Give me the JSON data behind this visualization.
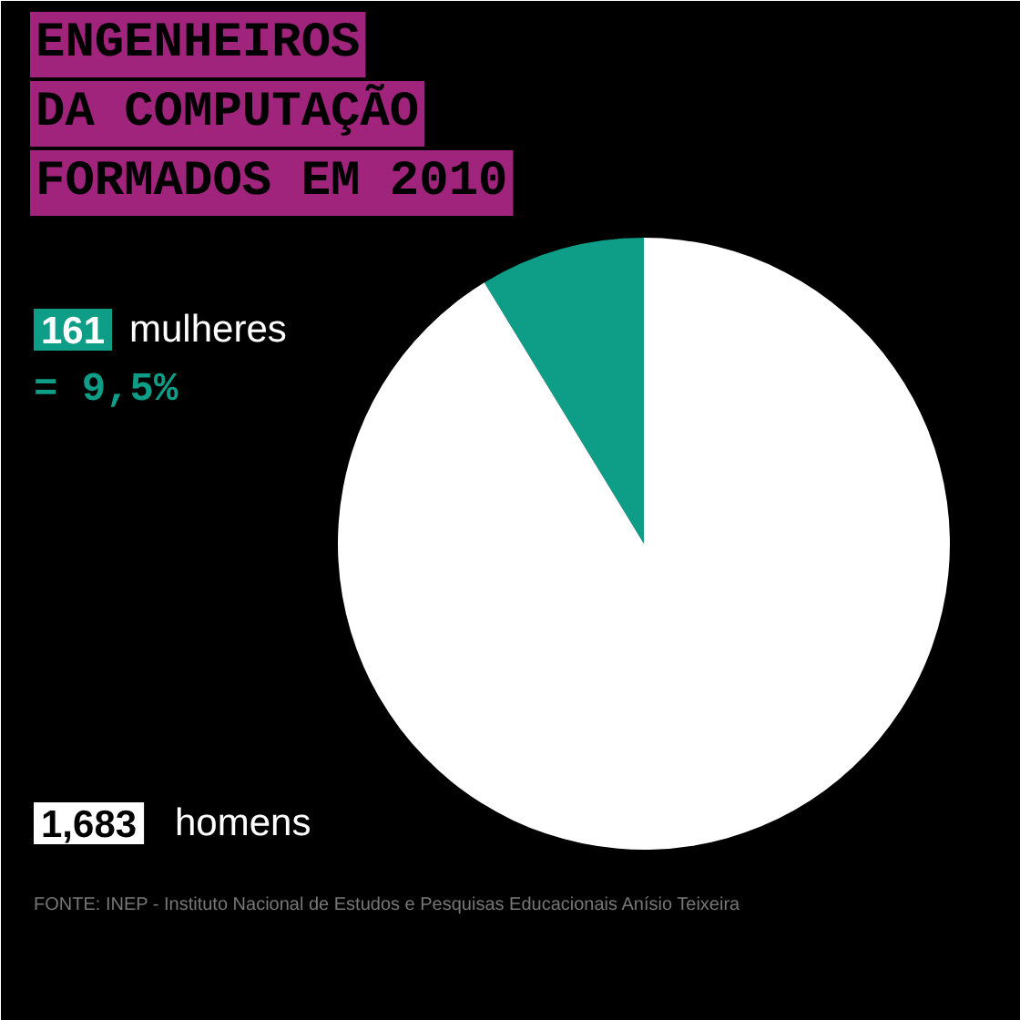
{
  "chart_data": {
    "type": "pie",
    "title": "ENGENHEIROS\nDA COMPUTAÇÃO\nFORMADOS EM 2010",
    "categories": [
      "mulheres",
      "homens"
    ],
    "values": [
      161,
      1683
    ],
    "colors": [
      "#0e9d87",
      "#ffffff"
    ],
    "value_labels": [
      "161",
      "1,683"
    ],
    "annotations": [
      "= 9,5%",
      "FONTE: INEP - Instituto Nacional de Estudos e Pesquisas Educacionais Anísio Teixeira"
    ],
    "legend": "left"
  }
}
